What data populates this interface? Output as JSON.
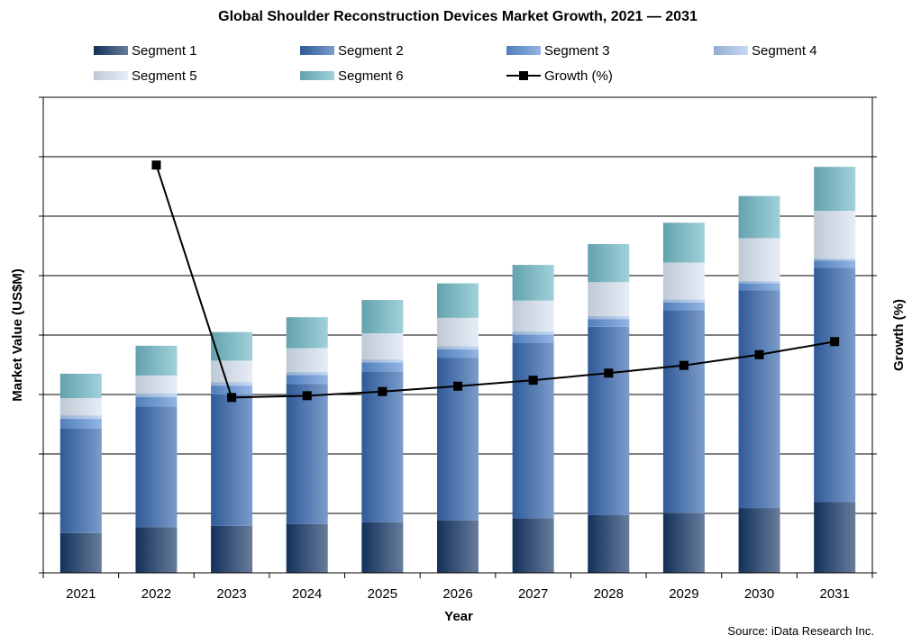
{
  "chart_data": {
    "type": "bar",
    "stacked": true,
    "title": "Global Shoulder Reconstruction Devices Market Growth, 2021 — 2031",
    "xlabel": "Year",
    "ylabel": "Market Value (US$M)",
    "y2label": "Growth (%)",
    "source": "Source: iData Research Inc.",
    "categories": [
      "2021",
      "2022",
      "2023",
      "2024",
      "2025",
      "2026",
      "2027",
      "2028",
      "2029",
      "2030",
      "2031"
    ],
    "ylim": [
      0,
      8
    ],
    "y2lim": [
      0,
      8
    ],
    "grid": true,
    "legend_position": "top",
    "series": [
      {
        "name": "Segment 1",
        "values": [
          0.67,
          0.77,
          0.79,
          0.82,
          0.85,
          0.88,
          0.92,
          0.97,
          1.01,
          1.09,
          1.19
        ],
        "color": "#163766"
      },
      {
        "name": "Segment 2",
        "values": [
          1.76,
          2.03,
          2.21,
          2.36,
          2.54,
          2.74,
          2.95,
          3.17,
          3.41,
          3.66,
          3.94
        ],
        "color": "#3566ad"
      },
      {
        "name": "Segment 3",
        "values": [
          0.16,
          0.16,
          0.15,
          0.15,
          0.15,
          0.14,
          0.14,
          0.13,
          0.13,
          0.12,
          0.12
        ],
        "color": "#5b8fd6"
      },
      {
        "name": "Segment 4",
        "values": [
          0.06,
          0.06,
          0.06,
          0.05,
          0.05,
          0.05,
          0.05,
          0.05,
          0.05,
          0.04,
          0.04
        ],
        "color": "#a7c5ec"
      },
      {
        "name": "Segment 5",
        "values": [
          0.29,
          0.3,
          0.36,
          0.4,
          0.44,
          0.48,
          0.52,
          0.57,
          0.62,
          0.72,
          0.8
        ],
        "color": "#d9e4f2"
      },
      {
        "name": "Segment 6",
        "values": [
          0.41,
          0.5,
          0.48,
          0.52,
          0.56,
          0.58,
          0.6,
          0.64,
          0.67,
          0.71,
          0.74
        ],
        "color": "#6fb8c6"
      }
    ],
    "line_series": {
      "name": "Growth (%)",
      "x": [
        "2022",
        "2023",
        "2024",
        "2025",
        "2026",
        "2027",
        "2028",
        "2029",
        "2030",
        "2031"
      ],
      "values": [
        6.86,
        2.95,
        2.98,
        3.05,
        3.14,
        3.24,
        3.36,
        3.49,
        3.67,
        3.89
      ],
      "color": "#000000"
    }
  }
}
